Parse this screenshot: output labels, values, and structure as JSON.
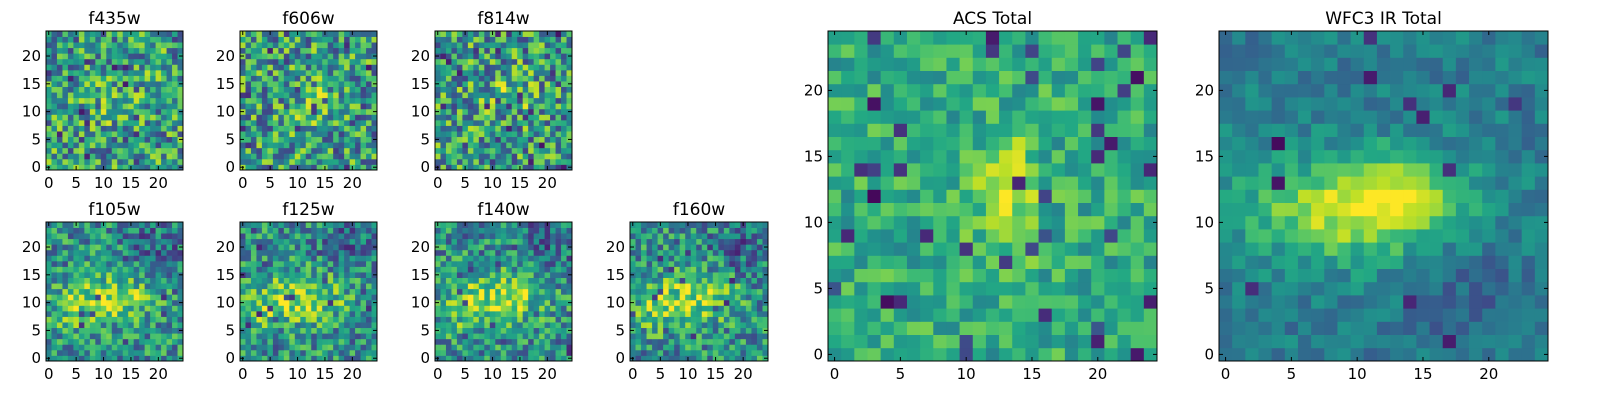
{
  "figure": {
    "background": "#ffffff",
    "colormap": "viridis"
  },
  "chart_data": [
    {
      "type": "heatmap",
      "title": "f435w",
      "xlim": [
        0,
        25
      ],
      "ylim": [
        0,
        25
      ],
      "xticks": [
        "0",
        "5",
        "10",
        "15",
        "20"
      ],
      "yticks": [
        "0",
        "5",
        "10",
        "15",
        "20"
      ],
      "grid": false,
      "image": "noise",
      "seed": 435
    },
    {
      "type": "heatmap",
      "title": "f606w",
      "xlim": [
        0,
        25
      ],
      "ylim": [
        0,
        25
      ],
      "xticks": [
        "0",
        "5",
        "10",
        "15",
        "20"
      ],
      "yticks": [
        "0",
        "5",
        "10",
        "15",
        "20"
      ],
      "grid": false,
      "image": "noise",
      "seed": 606
    },
    {
      "type": "heatmap",
      "title": "f814w",
      "xlim": [
        0,
        25
      ],
      "ylim": [
        0,
        25
      ],
      "xticks": [
        "0",
        "5",
        "10",
        "15",
        "20"
      ],
      "yticks": [
        "0",
        "5",
        "10",
        "15",
        "20"
      ],
      "grid": false,
      "image": "noise",
      "seed": 814
    },
    {
      "type": "heatmap",
      "title": "f105w",
      "xlim": [
        0,
        25
      ],
      "ylim": [
        0,
        25
      ],
      "xticks": [
        "0",
        "5",
        "10",
        "15",
        "20"
      ],
      "yticks": [
        "0",
        "5",
        "10",
        "15",
        "20"
      ],
      "grid": false,
      "image": "blob",
      "seed": 105
    },
    {
      "type": "heatmap",
      "title": "f125w",
      "xlim": [
        0,
        25
      ],
      "ylim": [
        0,
        25
      ],
      "xticks": [
        "0",
        "5",
        "10",
        "15",
        "20"
      ],
      "yticks": [
        "0",
        "5",
        "10",
        "15",
        "20"
      ],
      "grid": false,
      "image": "blob",
      "seed": 125
    },
    {
      "type": "heatmap",
      "title": "f140w",
      "xlim": [
        0,
        25
      ],
      "ylim": [
        0,
        25
      ],
      "xticks": [
        "0",
        "5",
        "10",
        "15",
        "20"
      ],
      "yticks": [
        "0",
        "5",
        "10",
        "15",
        "20"
      ],
      "grid": false,
      "image": "blob",
      "seed": 140
    },
    {
      "type": "heatmap",
      "title": "f160w",
      "xlim": [
        0,
        25
      ],
      "ylim": [
        0,
        25
      ],
      "xticks": [
        "0",
        "5",
        "10",
        "15",
        "20"
      ],
      "yticks": [
        "0",
        "5",
        "10",
        "15",
        "20"
      ],
      "grid": false,
      "image": "blob",
      "seed": 160
    },
    {
      "type": "heatmap",
      "title": "ACS Total",
      "xlim": [
        0,
        25
      ],
      "ylim": [
        0,
        25
      ],
      "xticks": [
        "0",
        "5",
        "10",
        "15",
        "20"
      ],
      "yticks": [
        "0",
        "5",
        "10",
        "15",
        "20"
      ],
      "grid": false,
      "image": "acs",
      "seed": 7
    },
    {
      "type": "heatmap",
      "title": "WFC3 IR Total",
      "xlim": [
        0,
        25
      ],
      "ylim": [
        0,
        25
      ],
      "xticks": [
        "0",
        "5",
        "10",
        "15",
        "20"
      ],
      "yticks": [
        "0",
        "5",
        "10",
        "15",
        "20"
      ],
      "grid": false,
      "image": "ir",
      "seed": 3
    }
  ]
}
